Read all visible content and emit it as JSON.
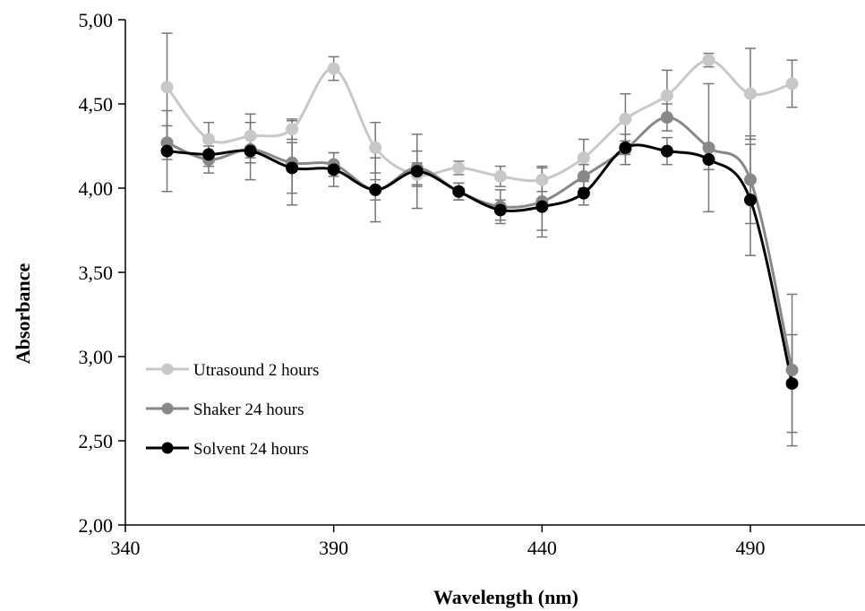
{
  "chart_data": {
    "type": "line",
    "title": "",
    "xlabel": "Wavelength (nm)",
    "ylabel": "Absorbance",
    "xlim": [
      340,
      520
    ],
    "ylim": [
      2.0,
      5.0
    ],
    "x_ticks": [
      340,
      390,
      440,
      490
    ],
    "y_ticks": [
      2.0,
      2.5,
      3.0,
      3.5,
      4.0,
      4.5,
      5.0
    ],
    "x_tick_labels": [
      "340",
      "390",
      "440",
      "490"
    ],
    "y_tick_labels": [
      "2,00",
      "2,50",
      "3,00",
      "3,50",
      "4,00",
      "4,50",
      "5,00"
    ],
    "grid": false,
    "legend_position": "bottom-left",
    "x": [
      350,
      360,
      370,
      380,
      390,
      400,
      410,
      420,
      430,
      440,
      450,
      460,
      470,
      480,
      490,
      500
    ],
    "series": [
      {
        "name": "Utrasound 2 hours",
        "color": "#c8c8c8",
        "values": [
          4.6,
          4.29,
          4.31,
          4.35,
          4.71,
          4.24,
          4.08,
          4.12,
          4.07,
          4.05,
          4.18,
          4.41,
          4.55,
          4.76,
          4.56,
          4.62
        ],
        "errors": [
          0.32,
          0.1,
          0.13,
          0.06,
          0.07,
          0.15,
          0.07,
          0.04,
          0.06,
          0.07,
          0.11,
          0.15,
          0.15,
          0.04,
          0.27,
          0.14
        ]
      },
      {
        "name": "Shaker 24 hours",
        "color": "#888888",
        "values": [
          4.27,
          4.17,
          4.23,
          4.15,
          4.14,
          3.99,
          4.12,
          3.98,
          3.89,
          3.92,
          4.07,
          4.23,
          4.42,
          4.24,
          4.05,
          2.92
        ],
        "errors": [
          0.1,
          0.08,
          0.08,
          0.25,
          0.07,
          0.06,
          0.1,
          0.05,
          0.1,
          0.21,
          0.07,
          0.09,
          0.08,
          0.38,
          0.26,
          0.45
        ]
      },
      {
        "name": "Solvent 24 hours",
        "color": "#000000",
        "values": [
          4.22,
          4.2,
          4.22,
          4.12,
          4.11,
          3.99,
          4.1,
          3.98,
          3.87,
          3.89,
          3.97,
          4.24,
          4.22,
          4.17,
          3.93,
          2.84
        ],
        "errors": [
          0.24,
          0.07,
          0.17,
          0.15,
          0.1,
          0.19,
          0.22,
          0.05,
          0.06,
          0.14,
          0.07,
          0.04,
          0.08,
          0.06,
          0.33,
          0.29
        ]
      }
    ]
  }
}
